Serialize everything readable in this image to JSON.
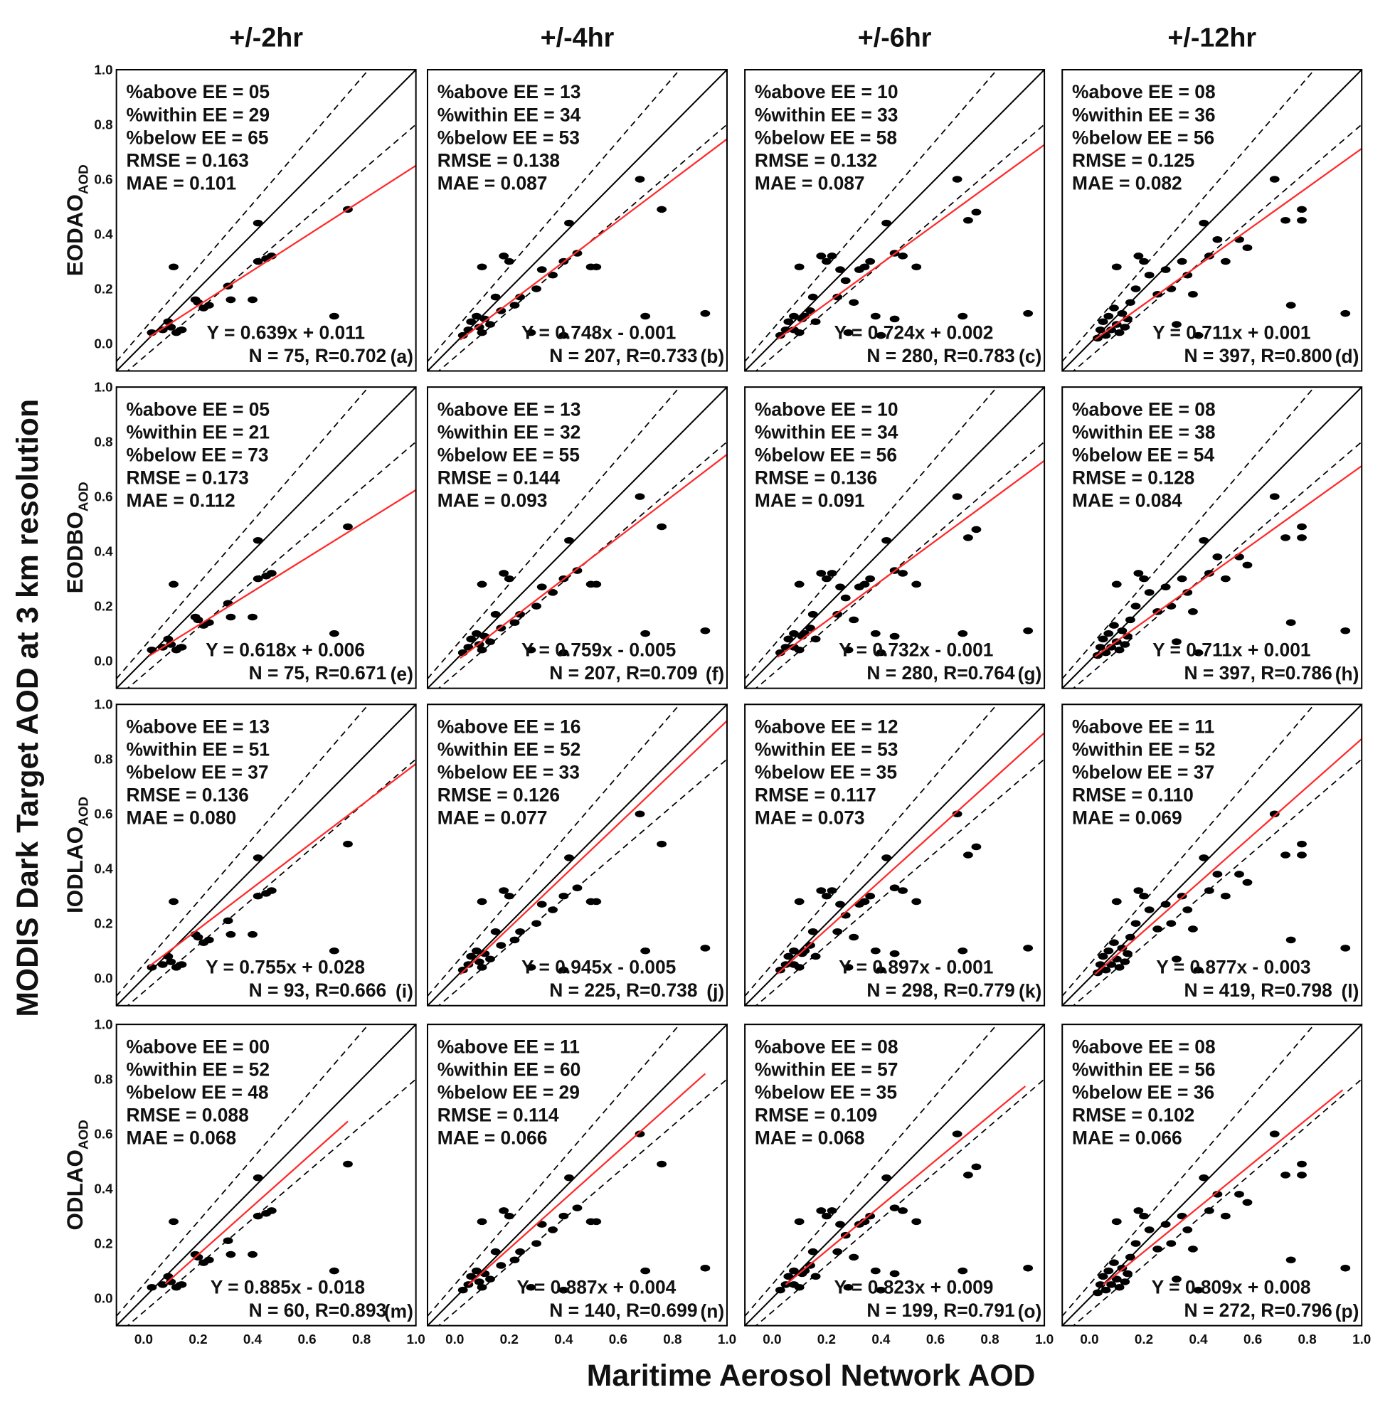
{
  "chart_data": {
    "type": "scatter",
    "title": "",
    "xlabel": "Maritime Aerosol Network AOD",
    "ylabel": "MODIS Dark Target AOD at 3 km resolution",
    "xlim": [
      -0.1,
      1.0
    ],
    "ylim": [
      -0.1,
      1.0
    ],
    "x_ticks": [
      "0.0",
      "0.2",
      "0.4",
      "0.6",
      "0.8",
      "1.0"
    ],
    "y_ticks": [
      "0.0",
      "0.2",
      "0.4",
      "0.6",
      "0.8",
      "1.0"
    ],
    "columns": [
      "+/-2hr",
      "+/-4hr",
      "+/-6hr",
      "+/-12hr"
    ],
    "rows": [
      {
        "label": "EODAO",
        "sub": "AOD"
      },
      {
        "label": "EODBO",
        "sub": "AOD"
      },
      {
        "label": "IODLAO",
        "sub": "AOD"
      },
      {
        "label": "ODLAO",
        "sub": "AOD"
      }
    ],
    "reference_lines": {
      "one_to_one": "solid black",
      "expected_error": "dashed black, y = x ± (0.05 + 0.15x)",
      "fit": "red"
    },
    "colors": {
      "fit": "#ff2a2a",
      "points": "#000000",
      "lines": "#000000"
    },
    "point_sets": [
      [
        [
          0.03,
          0.04
        ],
        [
          0.07,
          0.05
        ],
        [
          0.09,
          0.08
        ],
        [
          0.1,
          0.06
        ],
        [
          0.12,
          0.04
        ],
        [
          0.14,
          0.05
        ],
        [
          0.11,
          0.28
        ],
        [
          0.19,
          0.16
        ],
        [
          0.2,
          0.15
        ],
        [
          0.22,
          0.13
        ],
        [
          0.24,
          0.14
        ],
        [
          0.31,
          0.21
        ],
        [
          0.32,
          0.16
        ],
        [
          0.4,
          0.16
        ],
        [
          0.42,
          0.44
        ],
        [
          0.42,
          0.3
        ],
        [
          0.45,
          0.31
        ],
        [
          0.47,
          0.32
        ],
        [
          0.7,
          0.1
        ],
        [
          0.75,
          0.49
        ]
      ],
      [
        [
          0.03,
          0.03
        ],
        [
          0.05,
          0.05
        ],
        [
          0.06,
          0.08
        ],
        [
          0.08,
          0.1
        ],
        [
          0.09,
          0.06
        ],
        [
          0.1,
          0.04
        ],
        [
          0.11,
          0.09
        ],
        [
          0.13,
          0.07
        ],
        [
          0.1,
          0.28
        ],
        [
          0.15,
          0.17
        ],
        [
          0.17,
          0.12
        ],
        [
          0.18,
          0.32
        ],
        [
          0.2,
          0.3
        ],
        [
          0.22,
          0.14
        ],
        [
          0.24,
          0.17
        ],
        [
          0.3,
          0.2
        ],
        [
          0.32,
          0.27
        ],
        [
          0.36,
          0.25
        ],
        [
          0.28,
          0.04
        ],
        [
          0.4,
          0.03
        ],
        [
          0.4,
          0.3
        ],
        [
          0.42,
          0.44
        ],
        [
          0.45,
          0.33
        ],
        [
          0.5,
          0.28
        ],
        [
          0.52,
          0.28
        ],
        [
          0.68,
          0.6
        ],
        [
          0.7,
          0.1
        ],
        [
          0.76,
          0.49
        ],
        [
          0.92,
          0.11
        ]
      ],
      [
        [
          0.03,
          0.03
        ],
        [
          0.05,
          0.05
        ],
        [
          0.06,
          0.08
        ],
        [
          0.08,
          0.05
        ],
        [
          0.08,
          0.1
        ],
        [
          0.1,
          0.04
        ],
        [
          0.11,
          0.09
        ],
        [
          0.12,
          0.1
        ],
        [
          0.14,
          0.12
        ],
        [
          0.16,
          0.08
        ],
        [
          0.1,
          0.28
        ],
        [
          0.15,
          0.17
        ],
        [
          0.18,
          0.32
        ],
        [
          0.2,
          0.3
        ],
        [
          0.22,
          0.32
        ],
        [
          0.24,
          0.17
        ],
        [
          0.25,
          0.27
        ],
        [
          0.27,
          0.23
        ],
        [
          0.3,
          0.15
        ],
        [
          0.32,
          0.27
        ],
        [
          0.34,
          0.28
        ],
        [
          0.36,
          0.3
        ],
        [
          0.38,
          0.1
        ],
        [
          0.28,
          0.04
        ],
        [
          0.4,
          0.03
        ],
        [
          0.42,
          0.44
        ],
        [
          0.45,
          0.33
        ],
        [
          0.45,
          0.09
        ],
        [
          0.48,
          0.32
        ],
        [
          0.53,
          0.28
        ],
        [
          0.68,
          0.6
        ],
        [
          0.72,
          0.45
        ],
        [
          0.75,
          0.48
        ],
        [
          0.7,
          0.1
        ],
        [
          0.94,
          0.11
        ]
      ],
      [
        [
          0.03,
          0.02
        ],
        [
          0.04,
          0.05
        ],
        [
          0.05,
          0.08
        ],
        [
          0.06,
          0.03
        ],
        [
          0.07,
          0.1
        ],
        [
          0.08,
          0.05
        ],
        [
          0.09,
          0.13
        ],
        [
          0.1,
          0.07
        ],
        [
          0.11,
          0.04
        ],
        [
          0.12,
          0.11
        ],
        [
          0.13,
          0.06
        ],
        [
          0.14,
          0.09
        ],
        [
          0.15,
          0.15
        ],
        [
          0.1,
          0.28
        ],
        [
          0.17,
          0.2
        ],
        [
          0.18,
          0.32
        ],
        [
          0.2,
          0.3
        ],
        [
          0.22,
          0.25
        ],
        [
          0.25,
          0.18
        ],
        [
          0.28,
          0.27
        ],
        [
          0.3,
          0.2
        ],
        [
          0.32,
          0.07
        ],
        [
          0.34,
          0.3
        ],
        [
          0.36,
          0.25
        ],
        [
          0.38,
          0.18
        ],
        [
          0.4,
          0.03
        ],
        [
          0.42,
          0.44
        ],
        [
          0.44,
          0.32
        ],
        [
          0.47,
          0.38
        ],
        [
          0.5,
          0.3
        ],
        [
          0.55,
          0.38
        ],
        [
          0.58,
          0.35
        ],
        [
          0.68,
          0.6
        ],
        [
          0.72,
          0.45
        ],
        [
          0.74,
          0.14
        ],
        [
          0.78,
          0.45
        ],
        [
          0.78,
          0.49
        ],
        [
          0.94,
          0.11
        ]
      ]
    ],
    "panels": [
      {
        "id": "(a)",
        "row": 0,
        "col": 0,
        "points": 0,
        "stats": [
          "%above EE = 05",
          "%within EE = 29",
          "%below EE = 65",
          "RMSE = 0.163",
          "MAE = 0.101"
        ],
        "equation": "Y = 0.639x + 0.011",
        "n_r": "N = 75, R=0.702",
        "slope": 0.639,
        "intercept": 0.011,
        "fit_x": [
          0.02,
          1.0
        ]
      },
      {
        "id": "(b)",
        "row": 0,
        "col": 1,
        "points": 1,
        "stats": [
          "%above EE = 13",
          "%within EE = 34",
          "%below EE = 53",
          "RMSE = 0.138",
          "MAE = 0.087"
        ],
        "equation": "Y = 0.748x - 0.001",
        "n_r": "N = 207, R=0.733",
        "slope": 0.748,
        "intercept": -0.001,
        "fit_x": [
          0.02,
          1.0
        ]
      },
      {
        "id": "(c)",
        "row": 0,
        "col": 2,
        "points": 2,
        "stats": [
          "%above EE = 10",
          "%within EE = 33",
          "%below EE = 58",
          "RMSE = 0.132",
          "MAE = 0.087"
        ],
        "equation": "Y = 0.724x + 0.002",
        "n_r": "N = 280, R=0.783",
        "slope": 0.724,
        "intercept": 0.002,
        "fit_x": [
          0.02,
          1.0
        ]
      },
      {
        "id": "(d)",
        "row": 0,
        "col": 3,
        "points": 3,
        "stats": [
          "%above EE = 08",
          "%within EE = 36",
          "%below EE = 56",
          "RMSE = 0.125",
          "MAE = 0.082"
        ],
        "equation": "Y = 0.711x + 0.001",
        "n_r": "N = 397, R=0.800",
        "slope": 0.711,
        "intercept": 0.001,
        "fit_x": [
          0.02,
          1.0
        ]
      },
      {
        "id": "(e)",
        "row": 1,
        "col": 0,
        "points": 0,
        "stats": [
          "%above EE = 05",
          "%within EE = 21",
          "%below EE = 73",
          "RMSE = 0.173",
          "MAE = 0.112"
        ],
        "equation": "Y = 0.618x + 0.006",
        "n_r": "N = 75, R=0.671",
        "slope": 0.618,
        "intercept": 0.006,
        "fit_x": [
          0.02,
          1.0
        ]
      },
      {
        "id": "(f)",
        "row": 1,
        "col": 1,
        "points": 1,
        "stats": [
          "%above EE = 13",
          "%within EE = 32",
          "%below EE = 55",
          "RMSE = 0.144",
          "MAE = 0.093"
        ],
        "equation": "Y = 0.759x - 0.005",
        "n_r": "N = 207, R=0.709",
        "slope": 0.759,
        "intercept": -0.005,
        "fit_x": [
          0.02,
          1.0
        ]
      },
      {
        "id": "(g)",
        "row": 1,
        "col": 2,
        "points": 2,
        "stats": [
          "%above EE = 10",
          "%within EE = 34",
          "%below EE = 56",
          "RMSE = 0.136",
          "MAE = 0.091"
        ],
        "equation": "Y = 0.732x - 0.001",
        "n_r": "N = 280, R=0.764",
        "slope": 0.732,
        "intercept": -0.001,
        "fit_x": [
          0.02,
          1.0
        ]
      },
      {
        "id": "(h)",
        "row": 1,
        "col": 3,
        "points": 3,
        "stats": [
          "%above EE = 08",
          "%within EE = 38",
          "%below EE = 54",
          "RMSE = 0.128",
          "MAE = 0.084"
        ],
        "equation": "Y = 0.711x + 0.001",
        "n_r": "N = 397, R=0.786",
        "slope": 0.711,
        "intercept": 0.001,
        "fit_x": [
          0.02,
          1.0
        ]
      },
      {
        "id": "(i)",
        "row": 2,
        "col": 0,
        "points": 0,
        "stats": [
          "%above EE = 13",
          "%within EE = 51",
          "%below EE = 37",
          "RMSE = 0.136",
          "MAE = 0.080"
        ],
        "equation": "Y = 0.755x + 0.028",
        "n_r": "N = 93, R=0.666",
        "slope": 0.755,
        "intercept": 0.028,
        "fit_x": [
          0.02,
          1.0
        ]
      },
      {
        "id": "(j)",
        "row": 2,
        "col": 1,
        "points": 1,
        "stats": [
          "%above EE = 16",
          "%within EE = 52",
          "%below EE = 33",
          "RMSE = 0.126",
          "MAE = 0.077"
        ],
        "equation": "Y = 0.945x - 0.005",
        "n_r": "N = 225, R=0.738",
        "slope": 0.945,
        "intercept": -0.005,
        "fit_x": [
          0.02,
          1.0
        ]
      },
      {
        "id": "(k)",
        "row": 2,
        "col": 2,
        "points": 2,
        "stats": [
          "%above EE = 12",
          "%within EE = 53",
          "%below EE = 35",
          "RMSE = 0.117",
          "MAE = 0.073"
        ],
        "equation": "Y = 0.897x - 0.001",
        "n_r": "N = 298, R=0.779",
        "slope": 0.897,
        "intercept": -0.001,
        "fit_x": [
          0.02,
          1.0
        ]
      },
      {
        "id": "(l)",
        "row": 2,
        "col": 3,
        "points": 3,
        "stats": [
          "%above EE = 11",
          "%within EE = 52",
          "%below EE = 37",
          "RMSE = 0.110",
          "MAE = 0.069"
        ],
        "equation": "Y = 0.877x - 0.003",
        "n_r": "N = 419, R=0.798",
        "slope": 0.877,
        "intercept": -0.003,
        "fit_x": [
          0.02,
          1.0
        ]
      },
      {
        "id": "(m)",
        "row": 3,
        "col": 0,
        "points": 0,
        "stats": [
          "%above EE = 00",
          "%within EE = 52",
          "%below EE = 48",
          "RMSE = 0.088",
          "MAE = 0.068"
        ],
        "equation": "Y = 0.885x - 0.018",
        "n_r": "N = 60, R=0.893",
        "slope": 0.885,
        "intercept": -0.018,
        "fit_x": [
          0.08,
          0.75
        ]
      },
      {
        "id": "(n)",
        "row": 3,
        "col": 1,
        "points": 1,
        "stats": [
          "%above EE = 11",
          "%within EE = 60",
          "%below EE = 29",
          "RMSE = 0.114",
          "MAE = 0.066"
        ],
        "equation": "Y = 0.887x + 0.004",
        "n_r": "N = 140, R=0.699",
        "slope": 0.887,
        "intercept": 0.004,
        "fit_x": [
          0.05,
          0.92
        ]
      },
      {
        "id": "(o)",
        "row": 3,
        "col": 2,
        "points": 2,
        "stats": [
          "%above EE = 08",
          "%within EE = 57",
          "%below EE = 35",
          "RMSE = 0.109",
          "MAE = 0.068"
        ],
        "equation": "Y = 0.823x + 0.009",
        "n_r": "N = 199, R=0.791",
        "slope": 0.823,
        "intercept": 0.009,
        "fit_x": [
          0.05,
          0.93
        ]
      },
      {
        "id": "(p)",
        "row": 3,
        "col": 3,
        "points": 3,
        "stats": [
          "%above EE = 08",
          "%within EE = 56",
          "%below EE = 36",
          "RMSE = 0.102",
          "MAE = 0.066"
        ],
        "equation": "Y = 0.809x + 0.008",
        "n_r": "N = 272, R=0.796",
        "slope": 0.809,
        "intercept": 0.008,
        "fit_x": [
          0.05,
          0.93
        ]
      }
    ]
  }
}
